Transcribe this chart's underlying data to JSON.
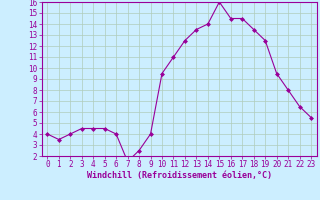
{
  "x": [
    0,
    1,
    2,
    3,
    4,
    5,
    6,
    7,
    8,
    9,
    10,
    11,
    12,
    13,
    14,
    15,
    16,
    17,
    18,
    19,
    20,
    21,
    22,
    23
  ],
  "y": [
    4,
    3.5,
    4,
    4.5,
    4.5,
    4.5,
    4,
    1.5,
    2.5,
    4,
    9.5,
    11,
    12.5,
    13.5,
    14,
    16,
    14.5,
    14.5,
    13.5,
    12.5,
    9.5,
    8,
    6.5,
    5.5
  ],
  "line_color": "#990099",
  "marker": "D",
  "marker_size": 2,
  "bg_color": "#cceeff",
  "grid_color": "#b0ccbb",
  "xlabel": "Windchill (Refroidissement éolien,°C)",
  "ylim": [
    2,
    16
  ],
  "xlim": [
    -0.5,
    23.5
  ],
  "yticks": [
    2,
    3,
    4,
    5,
    6,
    7,
    8,
    9,
    10,
    11,
    12,
    13,
    14,
    15,
    16
  ],
  "xticks": [
    0,
    1,
    2,
    3,
    4,
    5,
    6,
    7,
    8,
    9,
    10,
    11,
    12,
    13,
    14,
    15,
    16,
    17,
    18,
    19,
    20,
    21,
    22,
    23
  ],
  "tick_color": "#990099",
  "label_color": "#990099",
  "spine_color": "#990099",
  "tick_fontsize": 5.5,
  "xlabel_fontsize": 6.0
}
